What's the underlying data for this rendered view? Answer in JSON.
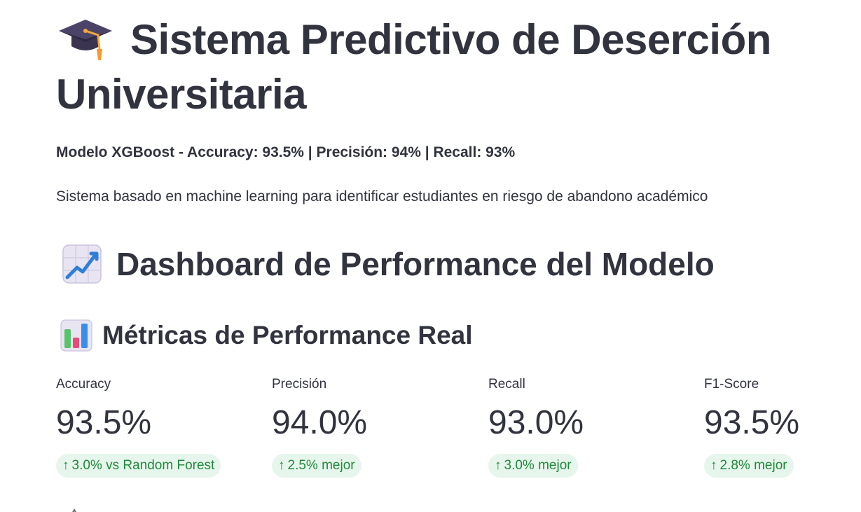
{
  "header": {
    "title": "Sistema Predictivo de Deserción Universitaria",
    "title_icon": "graduation-cap-icon",
    "subtitle": "Modelo XGBoost - Accuracy: 93.5% | Precisión: 94% | Recall: 93%",
    "description": "Sistema basado en machine learning para identificar estudiantes en riesgo de abandono académico"
  },
  "dashboard": {
    "title": "Dashboard de Performance del Modelo",
    "title_icon": "chart-increasing-icon"
  },
  "metrics_section": {
    "title": "Métricas de Performance Real",
    "title_icon": "bar-chart-icon",
    "items": [
      {
        "label": "Accuracy",
        "value": "93.5%",
        "delta": "3.0% vs Random Forest"
      },
      {
        "label": "Precisión",
        "value": "94.0%",
        "delta": "2.5% mejor"
      },
      {
        "label": "Recall",
        "value": "93.0%",
        "delta": "3.0% mejor"
      },
      {
        "label": "F1-Score",
        "value": "93.5%",
        "delta": "2.8% mejor"
      }
    ]
  },
  "colors": {
    "text": "#31333f",
    "delta_text": "#1f8a3a",
    "delta_bg": "#e7f6ec"
  }
}
